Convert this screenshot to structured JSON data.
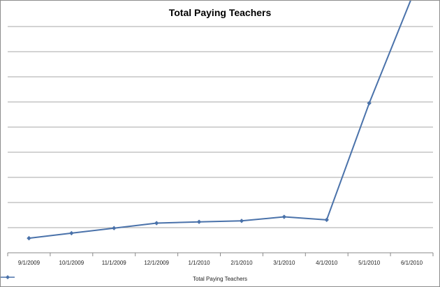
{
  "chart_data": {
    "type": "line",
    "title": "Total Paying Teachers",
    "xlabel": "",
    "ylabel": "",
    "categories": [
      "9/1/2009",
      "10/1/2009",
      "11/1/2009",
      "12/1/2009",
      "1/1/2010",
      "2/1/2010",
      "3/1/2010",
      "4/1/2010",
      "5/1/2010",
      "6/1/2010"
    ],
    "ylim": [
      0,
      9
    ],
    "y_gridlines": 9,
    "y_tick_labels_visible": false,
    "grid": true,
    "legend_position": "bottom",
    "series": [
      {
        "name": "Total Paying Teachers",
        "color": "#4a72aa",
        "marker": "diamond",
        "values": [
          0.58,
          0.78,
          0.98,
          1.18,
          1.23,
          1.27,
          1.43,
          1.31,
          5.95,
          10.15
        ]
      }
    ]
  }
}
